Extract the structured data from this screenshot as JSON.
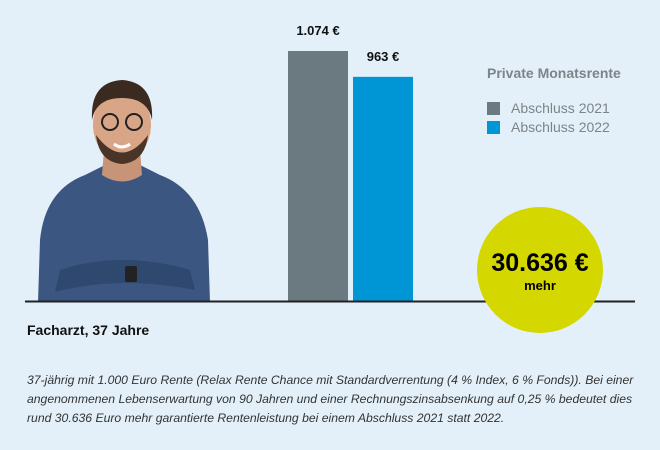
{
  "chart_data": {
    "type": "bar",
    "title": "Private Monatsrente",
    "categories": [
      "Abschluss 2021",
      "Abschluss 2022"
    ],
    "values": [
      1074,
      963
    ],
    "value_labels": [
      "1.074 €",
      "963 €"
    ],
    "colors": [
      "#6b7980",
      "#0096d6"
    ],
    "ylim": [
      0,
      1074
    ],
    "xlabel": "",
    "ylabel": "",
    "legend": [
      "Abschluss 2021",
      "Abschluss 2022"
    ],
    "legend_position": "top-right"
  },
  "highlight": {
    "amount": "30.636 €",
    "label": "mehr",
    "color": "#d4d700"
  },
  "caption": "Facharzt, 37 Jahre",
  "description": "37-jährig mit 1.000 Euro Rente (Relax Rente Chance mit Standardverrentung (4 % Index, 6 % Fonds)). Bei einer angenommenen Lebenserwartung von 90 Jahren und einer Rechnungszinsabsenkung auf 0,25 % bedeutet dies rund 30.636 Euro mehr garantierte Rentenleistung bei einem Abschluss 2021 statt 2022."
}
